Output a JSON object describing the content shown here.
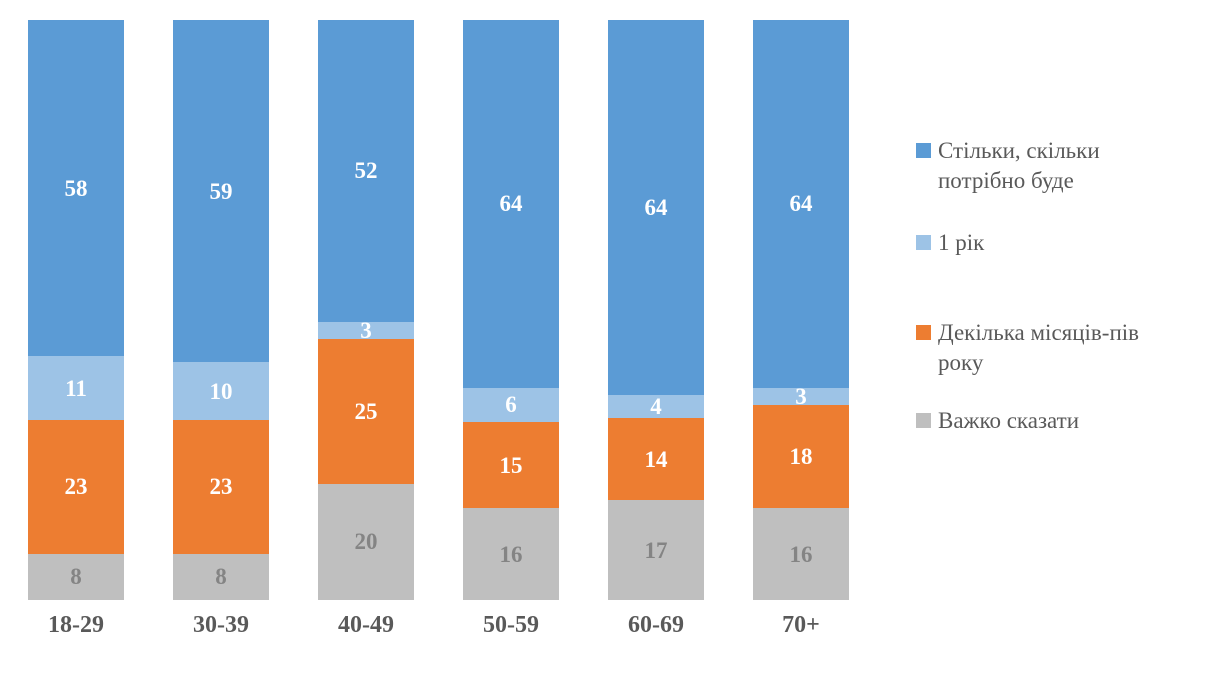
{
  "chart_data": {
    "type": "bar",
    "variant": "stacked-100",
    "orientation": "vertical",
    "title": "",
    "xlabel": "",
    "ylabel": "",
    "ylim": [
      0,
      100
    ],
    "grid": false,
    "legend_position": "right",
    "axis_label_color": "#595959",
    "legend_text_color": "#595959",
    "categories": [
      "18-29",
      "30-39",
      "40-49",
      "50-59",
      "60-69",
      "70+"
    ],
    "series": [
      {
        "name": "Стільки, скільки потрібно буде",
        "color": "#5B9BD5",
        "label_color": "#FFFFFF",
        "values": [
          58,
          59,
          52,
          64,
          64,
          64
        ]
      },
      {
        "name": "1 рік",
        "color": "#9DC3E6",
        "label_color": "#FFFFFF",
        "values": [
          11,
          10,
          3,
          6,
          4,
          3
        ]
      },
      {
        "name": "Декілька місяців-пів року",
        "color": "#ED7D31",
        "label_color": "#FFFFFF",
        "values": [
          23,
          23,
          25,
          15,
          14,
          18
        ]
      },
      {
        "name": "Важко сказати",
        "color": "#BFBFBF",
        "label_color": "#848484",
        "values": [
          8,
          8,
          20,
          16,
          17,
          16
        ]
      }
    ],
    "stack_order": "first-series-on-top"
  }
}
